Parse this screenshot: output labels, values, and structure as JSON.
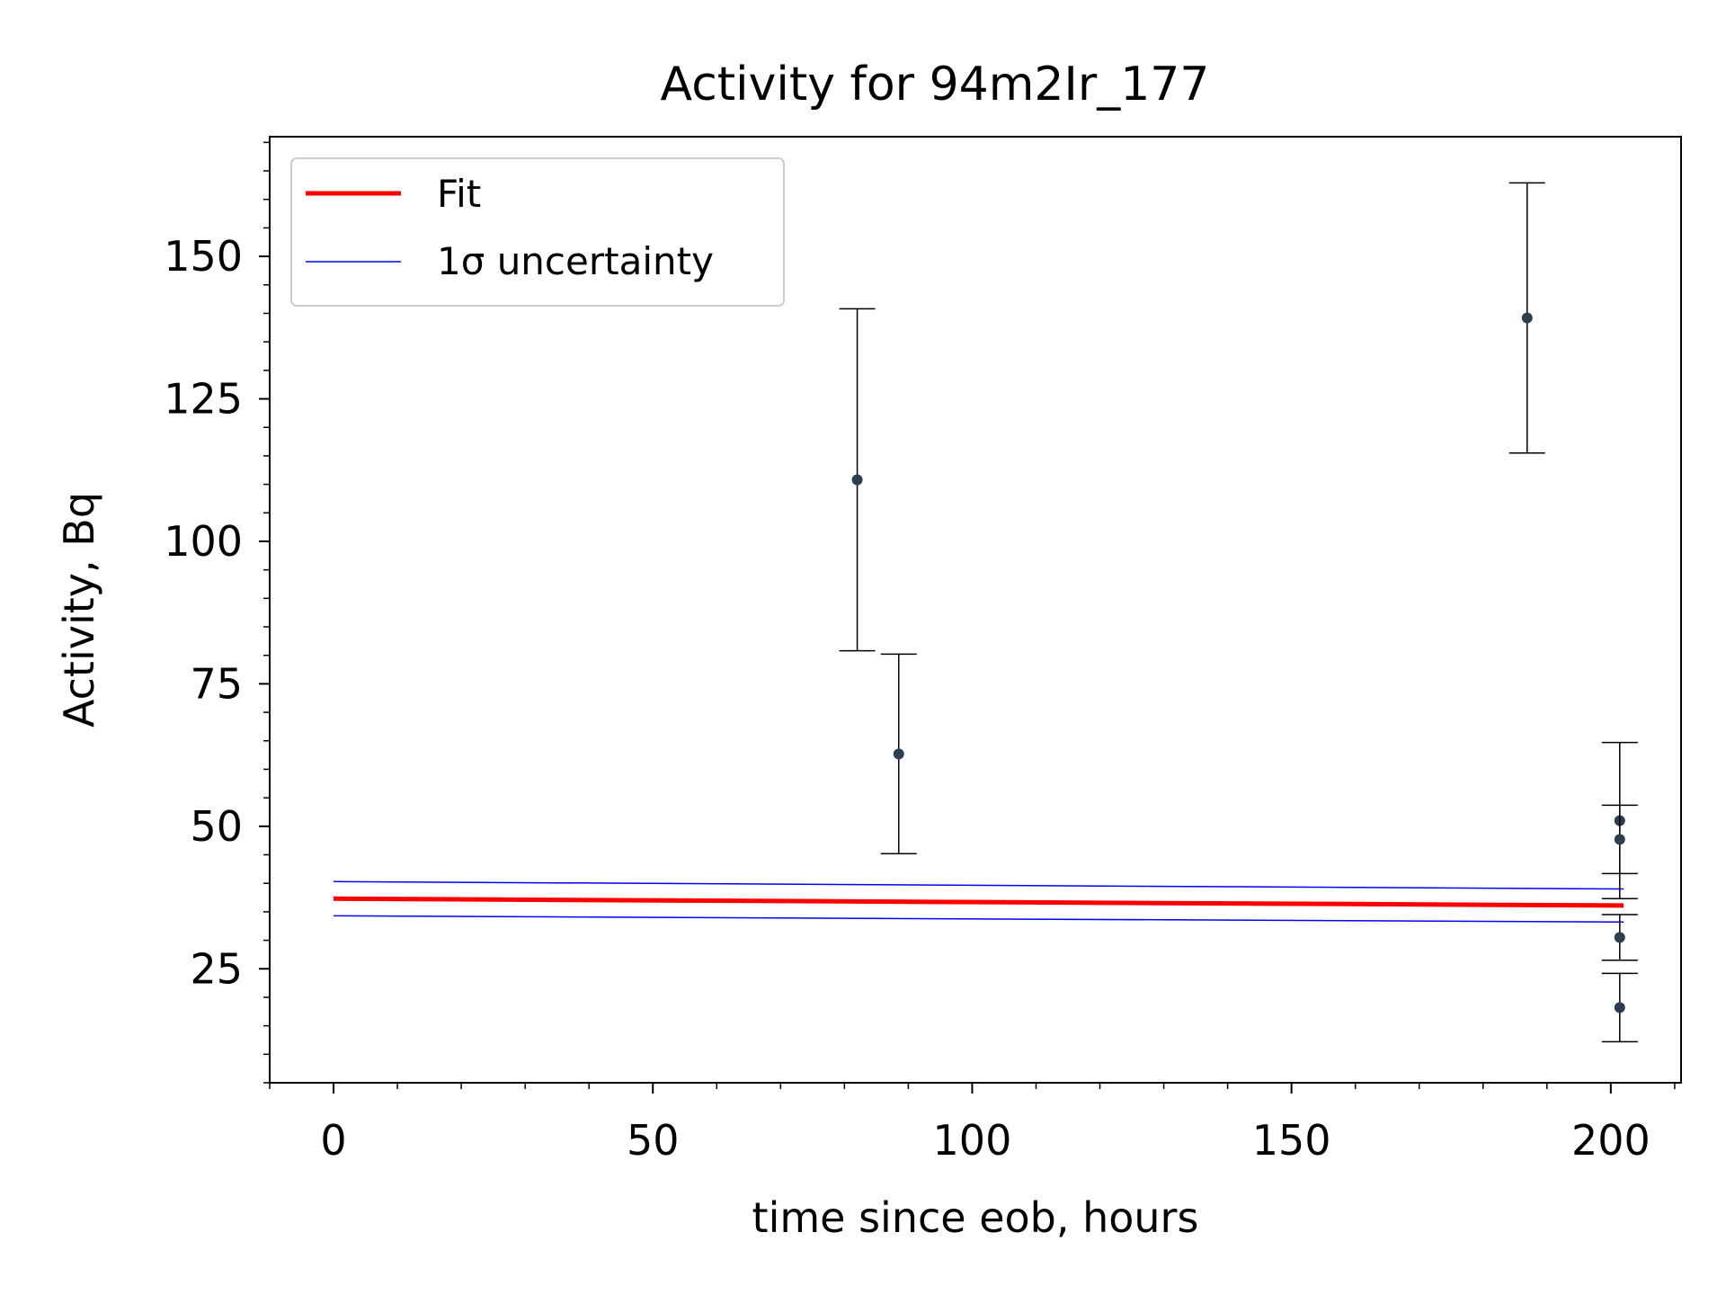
{
  "chart_data": {
    "type": "scatter",
    "title": "Activity for 94m2Ir_177",
    "xlabel": "time since eob, hours",
    "ylabel": "Activity, Bq",
    "xlim": [
      -10,
      211
    ],
    "ylim": [
      5,
      171
    ],
    "x_ticks": [
      0,
      50,
      100,
      150,
      200
    ],
    "y_ticks": [
      25,
      50,
      75,
      100,
      125,
      150
    ],
    "x_tick_labels": [
      "0",
      "50",
      "100",
      "150",
      "200"
    ],
    "y_tick_labels": [
      "25",
      "50",
      "75",
      "100",
      "125",
      "150"
    ],
    "grid": false,
    "legend_position": "top-left",
    "measurements": {
      "color": "#2d3e50",
      "points": [
        {
          "x": 82.0,
          "y": 110.8,
          "err": 30.0
        },
        {
          "x": 88.5,
          "y": 62.7,
          "err": 17.5
        },
        {
          "x": 186.9,
          "y": 139.2,
          "err": 23.7
        },
        {
          "x": 201.4,
          "y": 51.0,
          "err": 13.7
        },
        {
          "x": 201.4,
          "y": 47.7,
          "err": 6.0
        },
        {
          "x": 201.4,
          "y": 30.5,
          "err": 4.0
        },
        {
          "x": 201.4,
          "y": 18.2,
          "err": 6.0
        }
      ]
    },
    "series": [
      {
        "name": "Fit",
        "color": "#ff0000",
        "x": [
          0,
          202
        ],
        "y": [
          37.3,
          36.1
        ]
      },
      {
        "name": "1σ uncertainty",
        "color": "#0000ff",
        "x": [
          0,
          202
        ],
        "y": [
          40.3,
          39.0
        ]
      },
      {
        "name": "",
        "color": "#0000ff",
        "x": [
          0,
          202
        ],
        "y": [
          34.3,
          33.2
        ]
      }
    ],
    "legend": [
      {
        "label": "Fit",
        "color": "#ff0000"
      },
      {
        "label": "1σ uncertainty",
        "color": "#0000ff"
      }
    ]
  }
}
